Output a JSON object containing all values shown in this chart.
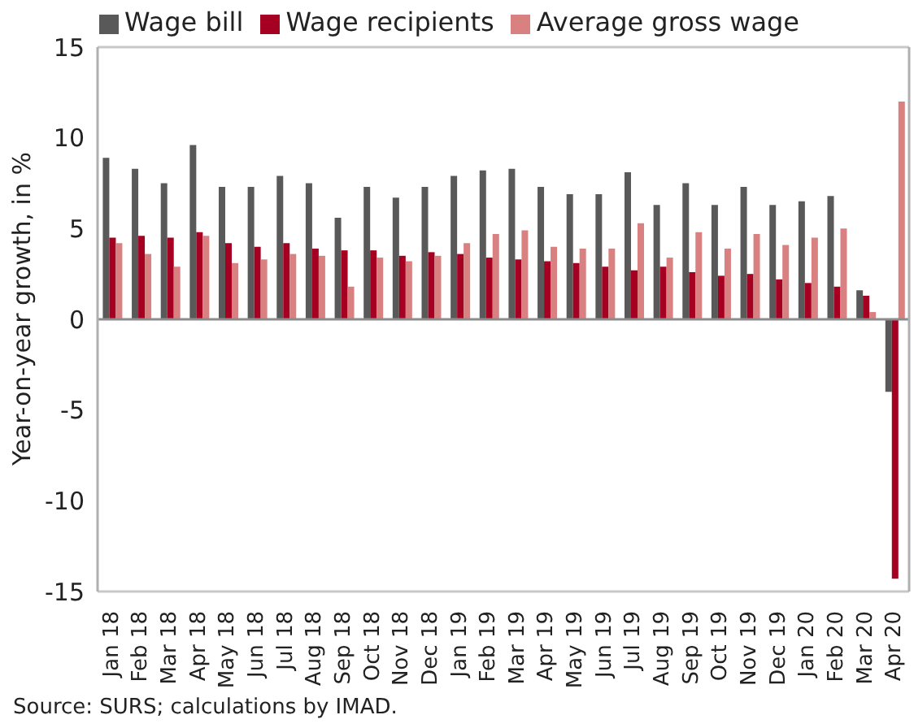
{
  "chart_data": {
    "type": "bar",
    "ylabel": "Year-on-year growth, in %",
    "categories": [
      "Jan 18",
      "Feb 18",
      "Mar 18",
      "Apr 18",
      "May 18",
      "Jun 18",
      "Jul 18",
      "Aug 18",
      "Sep 18",
      "Oct 18",
      "Nov 18",
      "Dec 18",
      "Jan 19",
      "Feb 19",
      "Mar 19",
      "Apr 19",
      "May 19",
      "Jun 19",
      "Jul 19",
      "Aug 19",
      "Sep 19",
      "Oct 19",
      "Nov 19",
      "Dec 19",
      "Jan 20",
      "Feb 20",
      "Mar 20",
      "Apr 20"
    ],
    "series": [
      {
        "name": "Wage bill",
        "color": "#595959",
        "values": [
          8.9,
          8.3,
          7.5,
          9.6,
          7.3,
          7.3,
          7.9,
          7.5,
          5.6,
          7.3,
          6.7,
          7.3,
          7.9,
          8.2,
          8.3,
          7.3,
          6.9,
          6.9,
          8.1,
          6.3,
          7.5,
          6.3,
          7.3,
          6.3,
          6.5,
          6.8,
          1.6,
          -4.0
        ]
      },
      {
        "name": "Wage recipients",
        "color": "#a50021",
        "values": [
          4.5,
          4.6,
          4.5,
          4.8,
          4.2,
          4.0,
          4.2,
          3.9,
          3.8,
          3.8,
          3.5,
          3.7,
          3.6,
          3.4,
          3.3,
          3.2,
          3.1,
          2.9,
          2.7,
          2.9,
          2.6,
          2.4,
          2.5,
          2.2,
          2.0,
          1.8,
          1.3,
          -14.3
        ]
      },
      {
        "name": "Average gross wage",
        "color": "#d98080",
        "values": [
          4.2,
          3.6,
          2.9,
          4.6,
          3.1,
          3.3,
          3.6,
          3.5,
          1.8,
          3.4,
          3.2,
          3.5,
          4.2,
          4.7,
          4.9,
          4.0,
          3.9,
          3.9,
          5.3,
          3.4,
          4.8,
          3.9,
          4.7,
          4.1,
          4.5,
          5.0,
          0.4,
          12.0
        ]
      }
    ],
    "ylim": [
      -15,
      15
    ],
    "yticks": [
      -15,
      -10,
      -5,
      0,
      5,
      10,
      15
    ],
    "grid": "y",
    "legend": "top",
    "annotations": [
      "Source:  SURS; calculations by IMAD."
    ]
  }
}
